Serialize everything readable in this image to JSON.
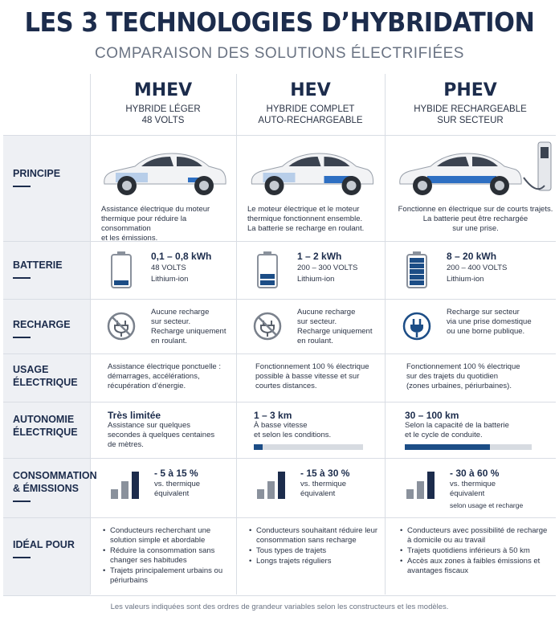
{
  "title": "LES 3 TECHNOLOGIES D’HYBRIDATION",
  "subtitle": "COMPARAISON DES SOLUTIONS ÉLECTRIFIÉES",
  "columns": [
    {
      "code": "MHEV",
      "sub1": "HYBRIDE LÉGER",
      "sub2": "48 VOLTS"
    },
    {
      "code": "HEV",
      "sub1": "HYBRIDE COMPLET",
      "sub2": "AUTO-RECHARGEABLE"
    },
    {
      "code": "PHEV",
      "sub1": "HYBIDE RECHARGEABLE",
      "sub2": "SUR SECTEUR"
    }
  ],
  "rows": {
    "principe": {
      "label": "PRINCIPE",
      "cells": [
        [
          "Assistance électrique du moteur",
          "thermique pour réduire la consommation",
          "et les émissions."
        ],
        [
          "Le moteur électrique et le moteur",
          "thermique fonctionnent ensemble.",
          "La batterie se recharge en roulant."
        ],
        [
          "Fonctionne en électrique sur de courts trajets.",
          "La batterie peut être rechargée",
          "sur une prise."
        ]
      ]
    },
    "batterie": {
      "label": "BATTERIE",
      "cells": [
        {
          "kwh": "0,1 – 0,8 kWh",
          "volts": "48 VOLTS",
          "type": "Lithium-ion",
          "level": 1
        },
        {
          "kwh": "1 – 2 kWh",
          "volts": "200 – 300 VOLTS",
          "type": "Lithium-ion",
          "level": 2
        },
        {
          "kwh": "8 – 20 kWh",
          "volts": "200 – 400 VOLTS",
          "type": "Lithium-ion",
          "level": 5
        }
      ]
    },
    "recharge": {
      "label": "RECHARGE",
      "cells": [
        {
          "icon": "no-plug-icon",
          "lines": [
            "Aucune recharge",
            "sur secteur.",
            "Recharge uniquement",
            "en roulant."
          ]
        },
        {
          "icon": "no-plug-icon",
          "lines": [
            "Aucune recharge",
            "sur secteur.",
            "Recharge uniquement",
            "en roulant."
          ]
        },
        {
          "icon": "plug-icon",
          "lines": [
            "Recharge sur secteur",
            "via une prise domestique",
            "ou une borne publique."
          ]
        }
      ]
    },
    "usage": {
      "label1": "USAGE",
      "label2": "ÉLECTRIQUE",
      "cells": [
        [
          "Assistance électrique ponctuelle :",
          "démarrages, accélérations,",
          "récupération d’énergie."
        ],
        [
          "Fonctionnement 100 % électrique",
          "possible à basse vitesse et sur",
          "courtes distances."
        ],
        [
          "Fonctionnement 100 % électrique",
          "sur des trajets du quotidien",
          "(zones urbaines, périurbaines)."
        ]
      ]
    },
    "autonomie": {
      "label1": "AUTONOMIE",
      "label2": "ÉLECTRIQUE",
      "cells": [
        {
          "big": "Très limitée",
          "lines": [
            "Assistance sur quelques",
            "secondes à quelques centaines",
            "de mètres."
          ],
          "fill": null
        },
        {
          "big": "1 – 3 km",
          "lines": [
            "À basse vitesse",
            "et selon les conditions."
          ],
          "fill": 0.08
        },
        {
          "big": "30 – 100 km",
          "lines": [
            "Selon la capacité de la batterie",
            "et le cycle de conduite."
          ],
          "fill": 0.67
        }
      ]
    },
    "conso": {
      "label1": "CONSOMMATION",
      "label2": "& ÉMISSIONS",
      "cells": [
        {
          "big": "- 5 à 15 %",
          "lines": [
            "vs. thermique",
            "équivalent"
          ],
          "note": ""
        },
        {
          "big": "- 15 à 30 %",
          "lines": [
            "vs. thermique",
            "équivalent"
          ],
          "note": ""
        },
        {
          "big": "- 30 à 60 %",
          "lines": [
            "vs. thermique",
            "équivalent"
          ],
          "note": "selon usage et recharge"
        }
      ]
    },
    "ideal": {
      "label": "IDÉAL POUR",
      "cells": [
        [
          "Conducteurs recherchant une solution simple et abordable",
          "Réduire la consommation sans changer ses habitudes",
          "Trajets principalement urbains ou périurbains"
        ],
        [
          "Conducteurs souhaitant réduire leur consommation sans recharge",
          "Tous types de trajets",
          "Longs trajets réguliers"
        ],
        [
          "Conducteurs avec possibilité de recharge à domicile ou au travail",
          "Trajets quotidiens inférieurs à 50 km",
          "Accès aux zones à faibles émissions et avantages fiscaux"
        ]
      ]
    }
  },
  "footer": "Les valeurs indiquées sont des ordres de grandeur variables selon les constructeurs et les modèles.",
  "colors": {
    "navy": "#1c2c4c",
    "accent": "#1c4d86",
    "grid": "#d9dde4",
    "label_bg": "#eef0f4"
  }
}
